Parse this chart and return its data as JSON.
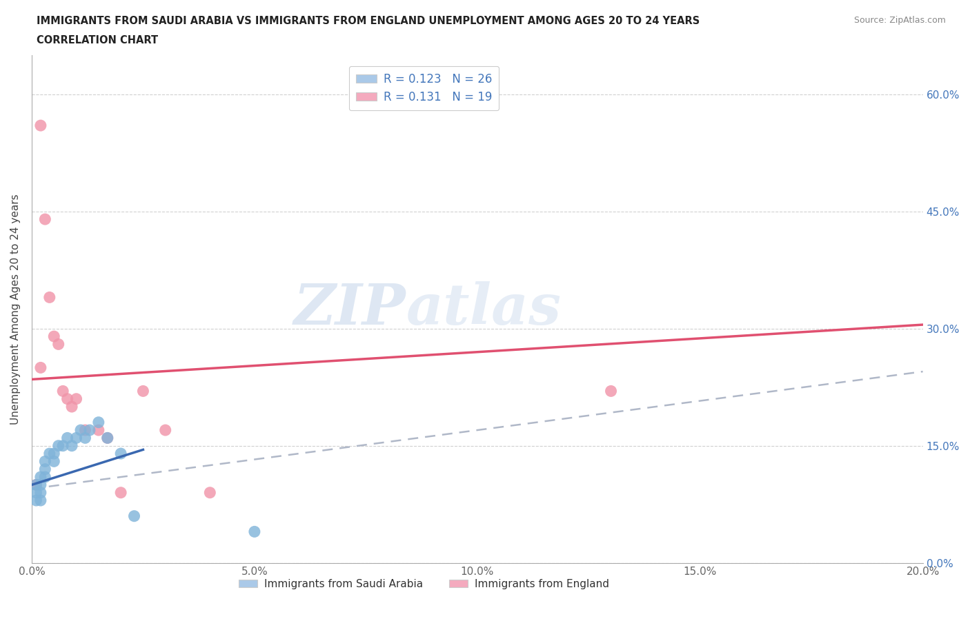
{
  "title_line1": "IMMIGRANTS FROM SAUDI ARABIA VS IMMIGRANTS FROM ENGLAND UNEMPLOYMENT AMONG AGES 20 TO 24 YEARS",
  "title_line2": "CORRELATION CHART",
  "source_text": "Source: ZipAtlas.com",
  "ylabel": "Unemployment Among Ages 20 to 24 years",
  "xlim": [
    0.0,
    0.2
  ],
  "ylim": [
    0.0,
    0.65
  ],
  "watermark_zip": "ZIP",
  "watermark_atlas": "atlas",
  "legend_entries": [
    {
      "label": "R = 0.123   N = 26",
      "color": "#aac9e8"
    },
    {
      "label": "R = 0.131   N = 19",
      "color": "#f4aabe"
    }
  ],
  "bottom_legend": [
    {
      "label": "Immigrants from Saudi Arabia",
      "color": "#aac9e8"
    },
    {
      "label": "Immigrants from England",
      "color": "#f4aabe"
    }
  ],
  "saudi_x": [
    0.001,
    0.001,
    0.001,
    0.002,
    0.002,
    0.002,
    0.002,
    0.003,
    0.003,
    0.003,
    0.004,
    0.005,
    0.005,
    0.006,
    0.007,
    0.008,
    0.009,
    0.01,
    0.011,
    0.012,
    0.013,
    0.015,
    0.017,
    0.02,
    0.023,
    0.05
  ],
  "saudi_y": [
    0.1,
    0.09,
    0.08,
    0.11,
    0.1,
    0.09,
    0.08,
    0.13,
    0.12,
    0.11,
    0.14,
    0.14,
    0.13,
    0.15,
    0.15,
    0.16,
    0.15,
    0.16,
    0.17,
    0.16,
    0.17,
    0.18,
    0.16,
    0.14,
    0.06,
    0.04
  ],
  "england_x": [
    0.001,
    0.002,
    0.002,
    0.003,
    0.004,
    0.005,
    0.006,
    0.007,
    0.008,
    0.009,
    0.01,
    0.012,
    0.015,
    0.017,
    0.02,
    0.025,
    0.03,
    0.04,
    0.13
  ],
  "england_y": [
    0.1,
    0.56,
    0.25,
    0.44,
    0.34,
    0.29,
    0.28,
    0.22,
    0.21,
    0.2,
    0.21,
    0.17,
    0.17,
    0.16,
    0.09,
    0.22,
    0.17,
    0.09,
    0.22
  ],
  "saudi_color": "#7fb3d9",
  "england_color": "#f093a8",
  "saudi_line_color": "#3a68b0",
  "england_line_color": "#e05070",
  "dashed_line_color": "#b0b8c8",
  "bg_color": "#ffffff",
  "grid_color": "#d0d0d0",
  "saudi_line_x0": 0.0,
  "saudi_line_x1": 0.025,
  "england_line_x0": 0.0,
  "england_line_x1": 0.2,
  "saudi_line_y0": 0.1,
  "saudi_line_y1": 0.145,
  "england_line_y0": 0.235,
  "england_line_y1": 0.305,
  "dash_line_y0": 0.095,
  "dash_line_y1": 0.245
}
